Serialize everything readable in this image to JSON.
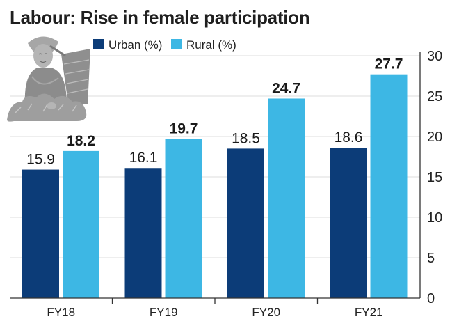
{
  "colors": {
    "urban": "#0c3c78",
    "rural": "#3db7e4",
    "grid": "#e3e3e3",
    "axis": "#333333",
    "illustration": "#9a9a9a"
  },
  "illustration": {
    "icon": "woman-tea-picker-illustration"
  },
  "chart_data": {
    "type": "bar",
    "title": "Labour: Rise in female participation",
    "categories": [
      "FY18",
      "FY19",
      "FY20",
      "FY21"
    ],
    "series": [
      {
        "name": "Urban (%)",
        "values": [
          15.9,
          16.1,
          18.5,
          18.6
        ]
      },
      {
        "name": "Rural (%)",
        "values": [
          18.2,
          19.7,
          24.7,
          27.7
        ]
      }
    ],
    "ylim": [
      0,
      30
    ],
    "yticks": [
      0,
      5,
      10,
      15,
      20,
      25,
      30
    ],
    "axis_side": "right",
    "grid": true,
    "legend_position": "top"
  }
}
